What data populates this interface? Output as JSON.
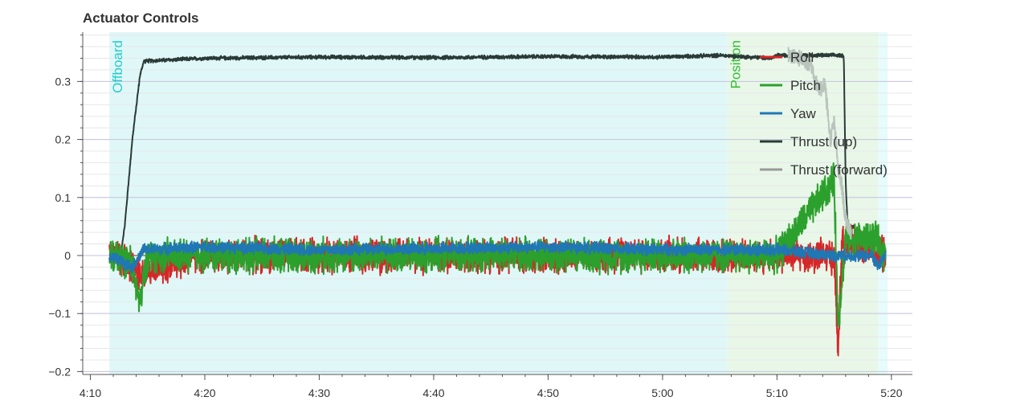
{
  "chart_data": {
    "type": "line",
    "title": "Actuator Controls",
    "xlabel": "",
    "ylabel": "",
    "xlim": [
      "4:09:20",
      "5:21:50"
    ],
    "ylim": [
      -0.205,
      0.385
    ],
    "x_ticks": [
      "4:10",
      "4:20",
      "4:30",
      "4:40",
      "4:50",
      "5:00",
      "5:10",
      "5:20"
    ],
    "y_ticks": [
      "−0.2",
      "−0.1",
      "0",
      "0.1",
      "0.2",
      "0.3"
    ],
    "grid": true,
    "legend_position": "top-right",
    "flight_modes": [
      {
        "name": "Offboard",
        "start": "4:11:40",
        "end": "5:05:40",
        "color": "#e0f7f7",
        "label_color": "#22cccc"
      },
      {
        "name": "Position",
        "start": "5:05:40",
        "end": "5:18:50",
        "color": "#e8f7e8",
        "label_color": "#33bb33"
      },
      {
        "name": "",
        "start": "5:18:50",
        "end": "5:19:40",
        "color": "#e6fbfb",
        "label_color": "#22cccc"
      }
    ],
    "series": [
      {
        "name": "Roll",
        "color": "#d62728",
        "points": [
          [
            "4:11:40",
            0.01
          ],
          [
            "4:12:30",
            0.0
          ],
          [
            "4:14:00",
            -0.03
          ],
          [
            "4:20:00",
            0.0
          ],
          [
            "4:30:00",
            0.0
          ],
          [
            "4:40:00",
            0.0
          ],
          [
            "4:50:00",
            0.0
          ],
          [
            "5:00:00",
            0.0
          ],
          [
            "5:10:00",
            0.0
          ],
          [
            "5:15:00",
            0.0
          ],
          [
            "5:15:20",
            -0.17
          ],
          [
            "5:15:40",
            0.02
          ],
          [
            "5:17:00",
            0.02
          ],
          [
            "5:19:30",
            0.0
          ]
        ],
        "noise": 0.035
      },
      {
        "name": "Pitch",
        "color": "#2ca02c",
        "points": [
          [
            "4:11:40",
            0.0
          ],
          [
            "4:13:30",
            -0.01
          ],
          [
            "4:14:20",
            -0.085
          ],
          [
            "4:15:00",
            0.0
          ],
          [
            "4:20:00",
            0.0
          ],
          [
            "4:30:00",
            0.0
          ],
          [
            "4:40:00",
            0.0
          ],
          [
            "4:50:00",
            0.0
          ],
          [
            "5:00:00",
            0.0
          ],
          [
            "5:10:00",
            0.0
          ],
          [
            "5:15:00",
            0.13
          ],
          [
            "5:15:20",
            -0.12
          ],
          [
            "5:16:00",
            0.03
          ],
          [
            "5:18:30",
            0.03
          ],
          [
            "5:19:30",
            0.0
          ]
        ],
        "noise": 0.035
      },
      {
        "name": "Yaw",
        "color": "#1f77b4",
        "points": [
          [
            "4:11:40",
            0.0
          ],
          [
            "4:13:40",
            -0.02
          ],
          [
            "4:14:40",
            0.01
          ],
          [
            "4:20:00",
            0.015
          ],
          [
            "4:30:00",
            0.01
          ],
          [
            "4:40:00",
            0.012
          ],
          [
            "4:50:00",
            0.015
          ],
          [
            "5:00:00",
            0.01
          ],
          [
            "5:10:00",
            0.01
          ],
          [
            "5:15:00",
            0.0
          ],
          [
            "5:18:20",
            0.0
          ],
          [
            "5:18:50",
            -0.02
          ],
          [
            "5:19:30",
            0.005
          ]
        ],
        "noise": 0.012
      },
      {
        "name": "Thrust (up)",
        "color": "#2a3a36",
        "points": [
          [
            "4:11:40",
            0.0
          ],
          [
            "4:12:40",
            0.005
          ],
          [
            "4:13:00",
            0.05
          ],
          [
            "4:13:40",
            0.2
          ],
          [
            "4:14:20",
            0.31
          ],
          [
            "4:14:40",
            0.335
          ],
          [
            "4:20:00",
            0.34
          ],
          [
            "4:30:00",
            0.342
          ],
          [
            "4:40:00",
            0.341
          ],
          [
            "4:50:00",
            0.343
          ],
          [
            "5:00:00",
            0.342
          ],
          [
            "5:05:00",
            0.345
          ],
          [
            "5:09:30",
            0.34
          ],
          [
            "5:10:00",
            0.345
          ],
          [
            "5:15:50",
            0.345
          ],
          [
            "5:16:00",
            0.13
          ],
          [
            "5:16:10",
            0.05
          ],
          [
            "5:16:50",
            0.05
          ],
          [
            "5:17:00",
            0.0
          ],
          [
            "5:19:30",
            0.0
          ]
        ],
        "noise": 0.004
      },
      {
        "name": "Thrust (forward)",
        "color": "#999999",
        "points": [
          [
            "4:11:40",
            0.0
          ],
          [
            "5:10:00",
            0.0
          ],
          [
            "5:15:30",
            0.0
          ],
          [
            "5:19:30",
            0.0
          ]
        ],
        "noise": 0.0
      }
    ],
    "thrust_forward_overlay": {
      "name": "Thrust (forward)",
      "color": "#b8c4bc",
      "points": [
        [
          "5:11:00",
          0.345
        ],
        [
          "5:12:00",
          0.34
        ],
        [
          "5:13:00",
          0.33
        ],
        [
          "5:13:40",
          0.28
        ],
        [
          "5:14:10",
          0.3
        ],
        [
          "5:14:40",
          0.2
        ],
        [
          "5:15:00",
          0.23
        ],
        [
          "5:15:20",
          0.15
        ],
        [
          "5:15:40",
          0.12
        ],
        [
          "5:16:00",
          0.06
        ],
        [
          "5:16:30",
          0.04
        ]
      ]
    }
  }
}
